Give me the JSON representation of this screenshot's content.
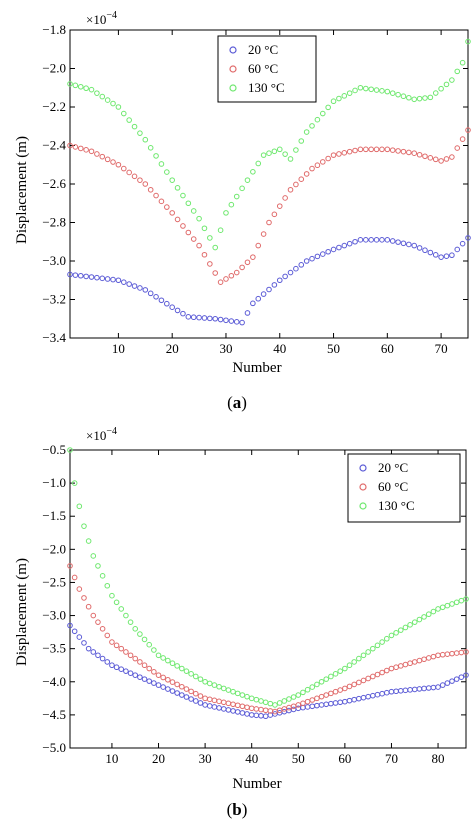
{
  "chart_data": [
    {
      "type": "scatter",
      "panel_label": "a",
      "xlabel": "Number",
      "ylabel": "Displacement (m)",
      "y_multiplier": "×10",
      "y_exponent": "−4",
      "xlim": [
        1,
        75
      ],
      "ylim": [
        -3.4,
        -1.8
      ],
      "x_ticks": [
        10,
        20,
        30,
        40,
        50,
        60,
        70
      ],
      "y_ticks": [
        -3.4,
        -3.2,
        -3.0,
        -2.8,
        -2.6,
        -2.4,
        -2.2,
        -2.0,
        -1.8
      ],
      "x_tick_labels": [
        "10",
        "20",
        "30",
        "40",
        "50",
        "60",
        "70"
      ],
      "y_tick_labels": [
        "−3.4",
        "−3.2",
        "−3.0",
        "−2.8",
        "−2.6",
        "−2.4",
        "−2.2",
        "−2.0",
        "−1.8"
      ],
      "legend_position": "top-center",
      "grid": false,
      "series_knots": [
        {
          "name": "20 °C",
          "color": "#5b5bd6",
          "knots": [
            [
              1,
              -3.07
            ],
            [
              10,
              -3.1
            ],
            [
              15,
              -3.15
            ],
            [
              20,
              -3.24
            ],
            [
              23,
              -3.29
            ],
            [
              28,
              -3.3
            ],
            [
              33,
              -3.32
            ],
            [
              35,
              -3.22
            ],
            [
              40,
              -3.1
            ],
            [
              45,
              -3.0
            ],
            [
              50,
              -2.94
            ],
            [
              55,
              -2.89
            ],
            [
              60,
              -2.89
            ],
            [
              65,
              -2.92
            ],
            [
              70,
              -2.98
            ],
            [
              72,
              -2.97
            ],
            [
              75,
              -2.88
            ]
          ]
        },
        {
          "name": "60 °C",
          "color": "#e06b6b",
          "knots": [
            [
              1,
              -2.4
            ],
            [
              5,
              -2.43
            ],
            [
              10,
              -2.5
            ],
            [
              15,
              -2.6
            ],
            [
              20,
              -2.75
            ],
            [
              25,
              -2.92
            ],
            [
              29,
              -3.11
            ],
            [
              32,
              -3.06
            ],
            [
              35,
              -2.98
            ],
            [
              38,
              -2.8
            ],
            [
              42,
              -2.63
            ],
            [
              46,
              -2.52
            ],
            [
              50,
              -2.45
            ],
            [
              55,
              -2.42
            ],
            [
              60,
              -2.42
            ],
            [
              65,
              -2.44
            ],
            [
              70,
              -2.48
            ],
            [
              72,
              -2.46
            ],
            [
              75,
              -2.32
            ]
          ]
        },
        {
          "name": "130 °C",
          "color": "#6fe86f",
          "knots": [
            [
              1,
              -2.08
            ],
            [
              5,
              -2.11
            ],
            [
              10,
              -2.2
            ],
            [
              15,
              -2.37
            ],
            [
              20,
              -2.58
            ],
            [
              25,
              -2.78
            ],
            [
              28,
              -2.93
            ],
            [
              30,
              -2.75
            ],
            [
              34,
              -2.58
            ],
            [
              37,
              -2.45
            ],
            [
              40,
              -2.42
            ],
            [
              42,
              -2.47
            ],
            [
              45,
              -2.33
            ],
            [
              50,
              -2.17
            ],
            [
              55,
              -2.1
            ],
            [
              60,
              -2.12
            ],
            [
              65,
              -2.16
            ],
            [
              68,
              -2.15
            ],
            [
              72,
              -2.06
            ],
            [
              74,
              -1.97
            ],
            [
              75,
              -1.86
            ]
          ]
        }
      ]
    },
    {
      "type": "scatter",
      "panel_label": "b",
      "xlabel": "Number",
      "ylabel": "Displacement (m)",
      "y_multiplier": "×10",
      "y_exponent": "−4",
      "xlim": [
        1,
        86
      ],
      "ylim": [
        -5.0,
        -0.5
      ],
      "x_ticks": [
        10,
        20,
        30,
        40,
        50,
        60,
        70,
        80
      ],
      "y_ticks": [
        -5.0,
        -4.5,
        -4.0,
        -3.5,
        -3.0,
        -2.5,
        -2.0,
        -1.5,
        -1.0,
        -0.5
      ],
      "x_tick_labels": [
        "10",
        "20",
        "30",
        "40",
        "50",
        "60",
        "70",
        "80"
      ],
      "y_tick_labels": [
        "−5.0",
        "−4.5",
        "−4.0",
        "−3.5",
        "−3.0",
        "−2.5",
        "−2.0",
        "−1.5",
        "−1.0",
        "−0.5"
      ],
      "legend_position": "top-right",
      "grid": false,
      "series_knots": [
        {
          "name": "20 °C",
          "color": "#5b5bd6",
          "knots": [
            [
              1,
              -3.15
            ],
            [
              5,
              -3.5
            ],
            [
              10,
              -3.75
            ],
            [
              20,
              -4.05
            ],
            [
              30,
              -4.35
            ],
            [
              40,
              -4.5
            ],
            [
              43,
              -4.52
            ],
            [
              50,
              -4.4
            ],
            [
              60,
              -4.3
            ],
            [
              70,
              -4.15
            ],
            [
              80,
              -4.08
            ],
            [
              86,
              -3.9
            ]
          ]
        },
        {
          "name": "60 °C",
          "color": "#e06b6b",
          "knots": [
            [
              1,
              -2.25
            ],
            [
              3,
              -2.6
            ],
            [
              6,
              -3.0
            ],
            [
              10,
              -3.4
            ],
            [
              20,
              -3.9
            ],
            [
              30,
              -4.25
            ],
            [
              40,
              -4.4
            ],
            [
              45,
              -4.45
            ],
            [
              50,
              -4.35
            ],
            [
              60,
              -4.1
            ],
            [
              70,
              -3.8
            ],
            [
              80,
              -3.6
            ],
            [
              86,
              -3.55
            ]
          ]
        },
        {
          "name": "130 °C",
          "color": "#6fe86f",
          "knots": [
            [
              1,
              -0.5
            ],
            [
              2,
              -1.0
            ],
            [
              3,
              -1.35
            ],
            [
              4,
              -1.65
            ],
            [
              6,
              -2.1
            ],
            [
              10,
              -2.7
            ],
            [
              15,
              -3.2
            ],
            [
              20,
              -3.6
            ],
            [
              30,
              -4.0
            ],
            [
              40,
              -4.25
            ],
            [
              45,
              -4.35
            ],
            [
              50,
              -4.2
            ],
            [
              60,
              -3.8
            ],
            [
              70,
              -3.3
            ],
            [
              80,
              -2.9
            ],
            [
              86,
              -2.75
            ]
          ]
        }
      ]
    }
  ]
}
